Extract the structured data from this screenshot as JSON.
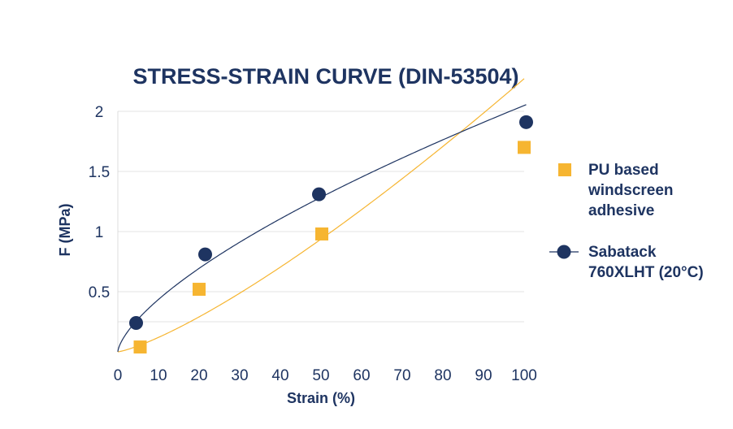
{
  "chart_data": {
    "type": "scatter",
    "title": "STRESS-STRAIN CURVE (DIN-53504)",
    "xlabel": "Strain (%)",
    "ylabel": "F (MPa)",
    "xlim": [
      0,
      100
    ],
    "ylim": [
      0,
      2
    ],
    "xticks": [
      "0",
      "10",
      "20",
      "30",
      "40",
      "50",
      "60",
      "70",
      "80",
      "90",
      "100"
    ],
    "yticks": [
      "0.5",
      "1",
      "1.5",
      "2"
    ],
    "grid": "horizontal",
    "legend_position": "right",
    "series": [
      {
        "name": "PU based windscreen adhesive",
        "legend_lines": [
          "PU based",
          "windscreen",
          "adhesive"
        ],
        "marker": "square",
        "color": "#f6b531",
        "points": [
          [
            5.5,
            0.04
          ],
          [
            20,
            0.52
          ],
          [
            50.2,
            0.98
          ],
          [
            100,
            1.7
          ]
        ]
      },
      {
        "name": "Sabatack 760XLHT (20°C)",
        "legend_lines": [
          "Sabatack",
          "760XLHT (20°C)"
        ],
        "marker": "circle",
        "color": "#1e3461",
        "points": [
          [
            4.5,
            0.24
          ],
          [
            21.5,
            0.81
          ],
          [
            49.5,
            1.31
          ],
          [
            100.5,
            1.91
          ]
        ]
      }
    ]
  }
}
